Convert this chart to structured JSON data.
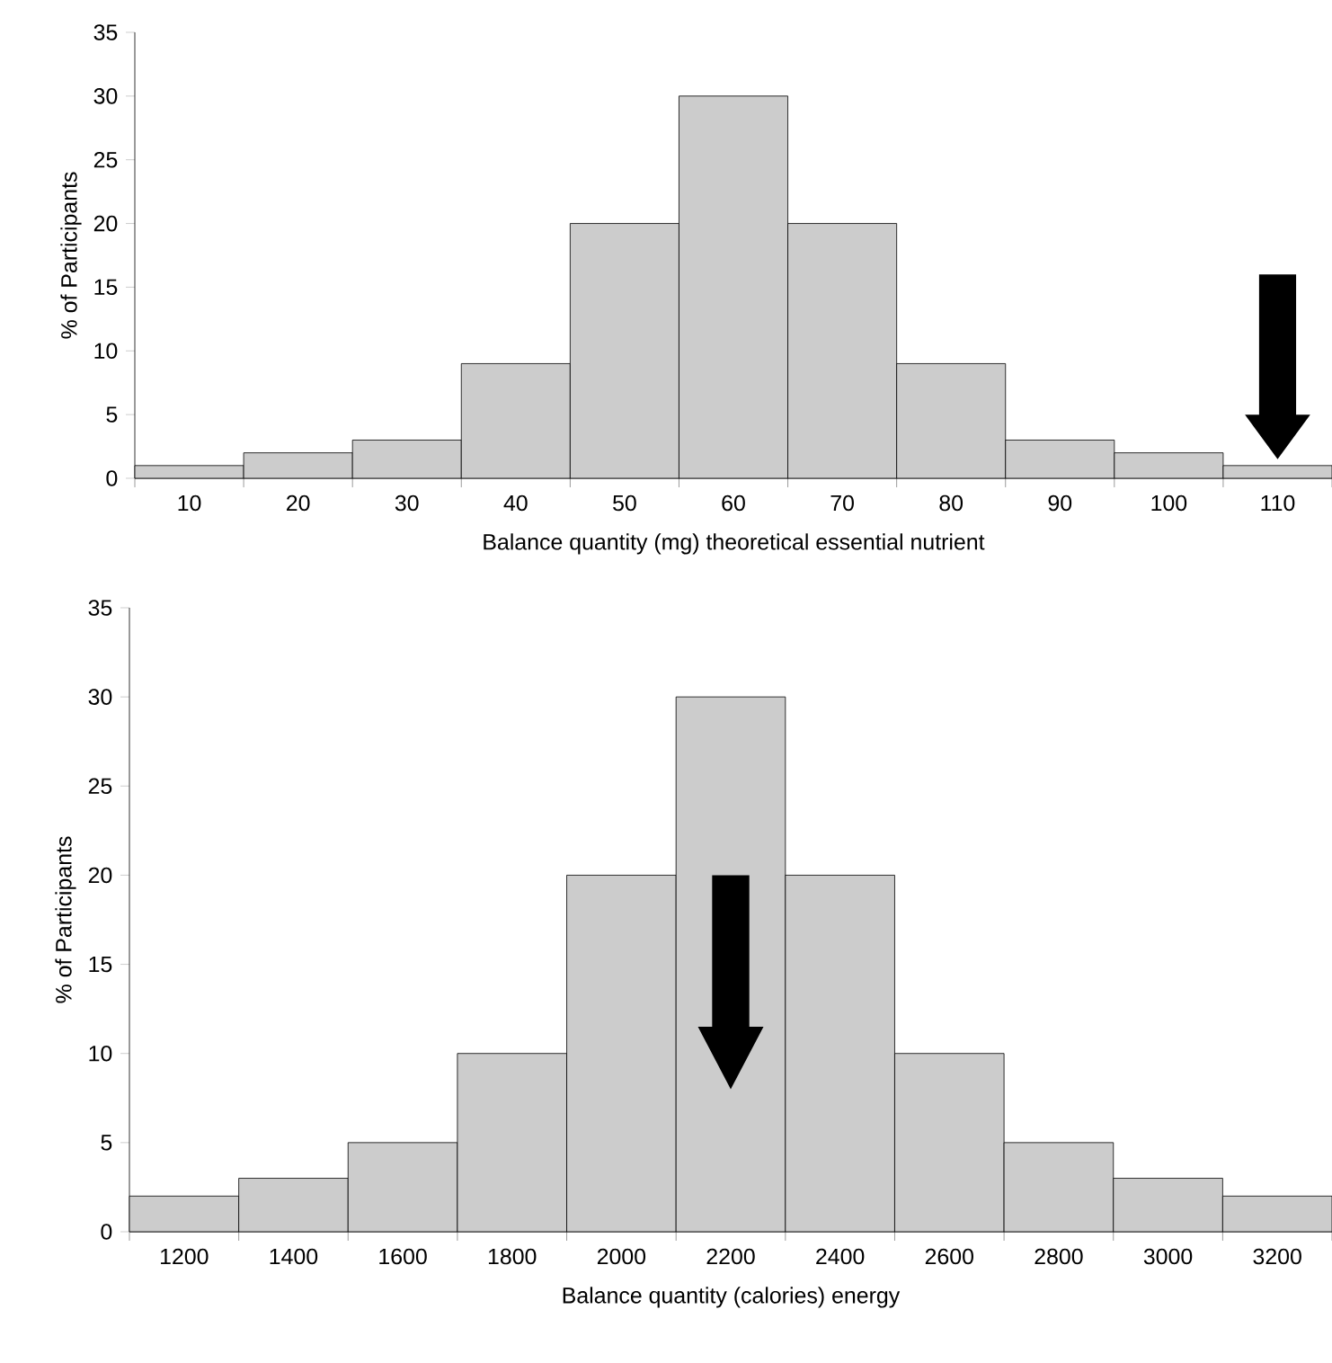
{
  "chart_data": [
    {
      "type": "bar",
      "xlabel": "Balance quantity (mg) theoretical essential nutrient",
      "ylabel": "% of Participants",
      "categories": [
        "10",
        "20",
        "30",
        "40",
        "50",
        "60",
        "70",
        "80",
        "90",
        "100",
        "110"
      ],
      "values": [
        1,
        2,
        3,
        9,
        20,
        30,
        20,
        9,
        3,
        2,
        1
      ],
      "color": "#cccccc",
      "ylim": [
        0,
        35
      ],
      "yticks": [
        0,
        5,
        10,
        15,
        20,
        25,
        30,
        35
      ]
    },
    {
      "type": "bar",
      "xlabel": "Balance quantity (calories) energy",
      "ylabel": "% of Participants",
      "categories": [
        "1200",
        "1400",
        "1600",
        "1800",
        "2000",
        "2200",
        "2400",
        "2600",
        "2800",
        "3000",
        "3200"
      ],
      "values": [
        2,
        3,
        5,
        10,
        20,
        30,
        20,
        10,
        5,
        3,
        2
      ],
      "color": "#cccccc",
      "ylim": [
        0,
        35
      ],
      "yticks": [
        0,
        5,
        10,
        15,
        20,
        25,
        30,
        35
      ]
    }
  ]
}
